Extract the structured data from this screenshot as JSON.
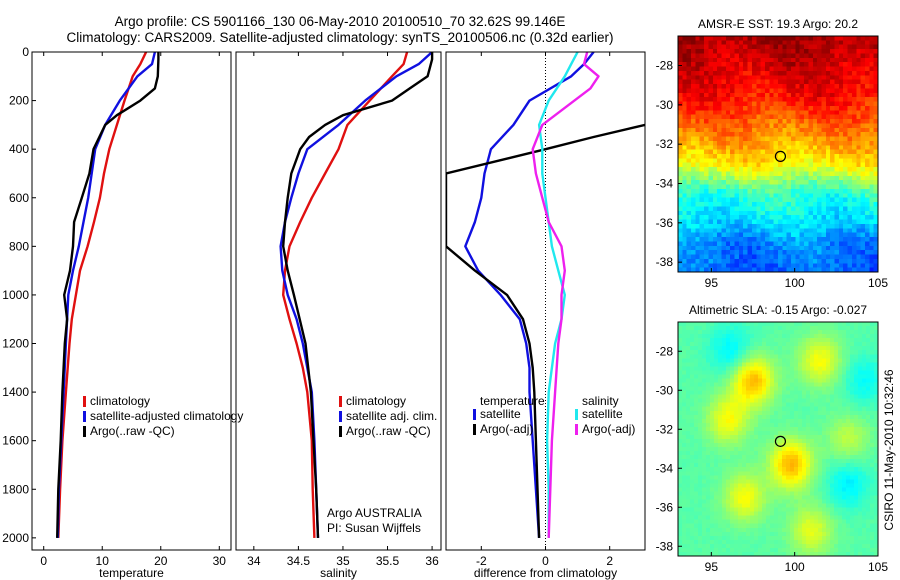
{
  "header": {
    "title_line1": "Argo profile: CS 5901166_130 06-May-2010 20100510_70 32.62S 99.146E",
    "title_line2": "Climatology: CARS2009. Satellite-adjusted climatology: synTS_20100506.nc (0.32d earlier)"
  },
  "side_label": "CSIRO 11-May-2010 10:32:46",
  "colors": {
    "red": "#e01010",
    "blue": "#1010e0",
    "black": "#000000",
    "cyan": "#20e8ee",
    "magenta": "#ee20ee"
  },
  "chart_data": [
    {
      "id": "temperature",
      "type": "line",
      "xlabel": "temperature",
      "xlim": [
        -2,
        32
      ],
      "ylim": [
        0,
        2050
      ],
      "y_reversed": true,
      "xticks": [
        0,
        10,
        20,
        30
      ],
      "yticks": [
        0,
        200,
        400,
        600,
        800,
        1000,
        1200,
        1400,
        1600,
        1800,
        2000
      ],
      "legend": {
        "placement": "bottom-right",
        "entries": [
          "climatology",
          "satellite-adjusted climatology",
          "Argo(..raw -QC)"
        ]
      },
      "series": [
        {
          "color": "red",
          "depth": [
            0,
            50,
            100,
            200,
            300,
            400,
            500,
            600,
            700,
            800,
            900,
            1000,
            1100,
            1200,
            1400,
            1600,
            1800,
            2000
          ],
          "values": [
            17.5,
            16.5,
            15.2,
            13.8,
            12.5,
            11.2,
            10.3,
            9.6,
            8.6,
            7.5,
            6.2,
            5.5,
            4.8,
            4.4,
            3.8,
            3.2,
            2.8,
            2.5
          ]
        },
        {
          "color": "blue",
          "depth": [
            0,
            50,
            100,
            200,
            300,
            400,
            500,
            600,
            700,
            800,
            900,
            1000,
            1100,
            1200,
            1400,
            1600,
            1800,
            2000
          ],
          "values": [
            19.0,
            18.5,
            16.0,
            13.0,
            10.5,
            8.8,
            8.2,
            7.6,
            6.8,
            6.0,
            5.0,
            4.2,
            4.0,
            3.8,
            3.4,
            3.0,
            2.6,
            2.4
          ]
        },
        {
          "color": "black",
          "depth": [
            0,
            30,
            100,
            150,
            200,
            260,
            300,
            400,
            500,
            600,
            700,
            800,
            900,
            1000,
            1100,
            1200,
            1400,
            1600,
            1800,
            2000
          ],
          "values": [
            19.6,
            19.6,
            19.5,
            19.0,
            16.5,
            12.5,
            10.5,
            8.5,
            7.8,
            6.5,
            5.2,
            5.0,
            4.5,
            3.5,
            4.0,
            3.6,
            3.2,
            2.9,
            2.5,
            2.3
          ]
        }
      ]
    },
    {
      "id": "salinity",
      "type": "line",
      "xlabel": "salinity",
      "xlim": [
        33.8,
        36.1
      ],
      "ylim": [
        0,
        2050
      ],
      "y_reversed": true,
      "xticks": [
        34,
        34.5,
        35,
        35.5,
        36
      ],
      "xticklabels": [
        "34",
        "34.5",
        "35",
        "35.5",
        "36"
      ],
      "legend": {
        "placement": "bottom-right",
        "entries": [
          "climatology",
          "satellite adj. clim.",
          "Argo(..raw -QC)"
        ]
      },
      "annotation": [
        "Argo AUSTRALIA",
        "PI: Susan Wijffels"
      ],
      "series": [
        {
          "color": "red",
          "depth": [
            0,
            50,
            100,
            200,
            300,
            400,
            500,
            600,
            700,
            800,
            900,
            1000,
            1100,
            1200,
            1300,
            1400,
            1600,
            1800,
            2000
          ],
          "values": [
            35.72,
            35.68,
            35.55,
            35.3,
            35.05,
            34.95,
            34.8,
            34.65,
            34.52,
            34.4,
            34.35,
            34.33,
            34.4,
            34.48,
            34.55,
            34.6,
            34.65,
            34.66,
            34.68
          ]
        },
        {
          "color": "blue",
          "depth": [
            0,
            50,
            100,
            200,
            300,
            400,
            500,
            600,
            700,
            800,
            900,
            1000,
            1100,
            1200,
            1300,
            1400,
            1600,
            1800,
            2000
          ],
          "values": [
            36.0,
            35.85,
            35.6,
            35.25,
            34.95,
            34.6,
            34.5,
            34.42,
            34.35,
            34.3,
            34.32,
            34.38,
            34.48,
            34.55,
            34.6,
            34.65,
            34.68,
            34.7,
            34.72
          ]
        },
        {
          "color": "black",
          "depth": [
            0,
            30,
            100,
            150,
            200,
            260,
            300,
            350,
            400,
            500,
            600,
            700,
            800,
            900,
            1000,
            1200,
            1400,
            1600,
            1800,
            2000
          ],
          "values": [
            36.0,
            36.0,
            35.95,
            35.75,
            35.55,
            35.0,
            34.8,
            34.62,
            34.52,
            34.42,
            34.38,
            34.35,
            34.33,
            34.38,
            34.45,
            34.58,
            34.64,
            34.67,
            34.7,
            34.72
          ]
        }
      ]
    },
    {
      "id": "difference",
      "type": "line",
      "xlabel": "difference from climatology",
      "xlim": [
        -3.1,
        3.1
      ],
      "ylim": [
        0,
        2050
      ],
      "y_reversed": true,
      "xticks": [
        -2,
        0,
        2
      ],
      "zero_line": true,
      "legend": {
        "placement": "bottom",
        "temperature_title": "temperature",
        "salinity_title": "salinity",
        "temperature_entries": [
          "satellite",
          "Argo(-adj)"
        ],
        "salinity_entries": [
          "satellite",
          "Argo(-adj)"
        ]
      },
      "series": [
        {
          "color": "blue",
          "depth": [
            0,
            50,
            100,
            200,
            300,
            400,
            500,
            600,
            700,
            800,
            900,
            1000,
            1100,
            1200,
            1300,
            1400,
            1600,
            1800,
            2000
          ],
          "values": [
            1.5,
            1.2,
            0.8,
            -0.5,
            -1.0,
            -1.7,
            -1.9,
            -2.0,
            -2.2,
            -2.5,
            -2.1,
            -1.4,
            -0.8,
            -0.6,
            -0.5,
            -0.5,
            -0.4,
            -0.3,
            -0.2
          ]
        },
        {
          "color": "black",
          "depth": [
            300,
            350,
            400,
            500,
            800,
            900,
            1000,
            1100,
            1200,
            1300,
            1400,
            1600,
            1800,
            2000
          ],
          "values": [
            3.1,
            1.5,
            0.0,
            -3.1,
            -3.1,
            -2.2,
            -1.2,
            -0.7,
            -0.5,
            -0.4,
            -0.35,
            -0.3,
            -0.25,
            -0.2
          ]
        },
        {
          "color": "cyan",
          "depth": [
            0,
            50,
            100,
            200,
            300,
            400,
            500,
            600,
            700,
            800,
            900,
            1000,
            1100,
            1200,
            1300,
            1400,
            1600,
            1800,
            2000
          ],
          "values": [
            1.0,
            0.8,
            0.6,
            0.1,
            -0.2,
            -0.1,
            -0.1,
            0.0,
            0.1,
            0.2,
            0.4,
            0.6,
            0.5,
            0.3,
            0.2,
            0.1,
            0.05,
            0.1,
            0.1
          ]
        },
        {
          "color": "magenta",
          "depth": [
            0,
            50,
            100,
            150,
            200,
            300,
            400,
            500,
            600,
            700,
            800,
            900,
            1000,
            1100,
            1200,
            1400,
            1600,
            1800,
            2000
          ],
          "values": [
            1.3,
            1.2,
            1.65,
            1.4,
            0.9,
            -0.1,
            -0.4,
            -0.3,
            -0.1,
            0.1,
            0.5,
            0.6,
            0.5,
            0.5,
            0.4,
            0.3,
            0.2,
            0.15,
            0.1
          ]
        }
      ]
    },
    {
      "id": "sst_map",
      "type": "heatmap",
      "title": "AMSR-E SST: 19.3 Argo: 20.2",
      "xlim": [
        93,
        105
      ],
      "ylim": [
        -38.5,
        -26.5
      ],
      "xticks": [
        95,
        100,
        105
      ],
      "yticks": [
        -28,
        -30,
        -32,
        -34,
        -36,
        -38
      ],
      "yticklabels": [
        "-28",
        "-30",
        "-32",
        "-34",
        "-36",
        "-38"
      ],
      "marker": [
        99.146,
        -32.62
      ],
      "colormap": "jet",
      "value_bands": [
        {
          "lat": -26.5,
          "value": 0.97
        },
        {
          "lat": -29.5,
          "value": 0.87
        },
        {
          "lat": -31.5,
          "value": 0.74
        },
        {
          "lat": -33.0,
          "value": 0.64
        },
        {
          "lat": -34.5,
          "value": 0.42
        },
        {
          "lat": -36.0,
          "value": 0.34
        },
        {
          "lat": -37.0,
          "value": 0.26
        },
        {
          "lat": -38.5,
          "value": 0.22
        }
      ]
    },
    {
      "id": "sla_map",
      "type": "heatmap",
      "title": "Altimetric SLA: -0.15 Argo: -0.027",
      "xlim": [
        93,
        105
      ],
      "ylim": [
        -38.5,
        -26.5
      ],
      "xticks": [
        95,
        100,
        105
      ],
      "yticks": [
        -28,
        -30,
        -32,
        -34,
        -36,
        -38
      ],
      "yticklabels": [
        "-28",
        "-30",
        "-32",
        "-34",
        "-36",
        "-38"
      ],
      "marker": [
        99.146,
        -32.62
      ],
      "colormap": "jet",
      "base_value": 0.46,
      "blobs": [
        {
          "lon": 97.5,
          "lat": -29.5,
          "value": 0.7
        },
        {
          "lon": 96.0,
          "lat": -31.5,
          "value": 0.62
        },
        {
          "lon": 99.8,
          "lat": -33.8,
          "value": 0.7
        },
        {
          "lon": 97.0,
          "lat": -35.5,
          "value": 0.62
        },
        {
          "lon": 101.5,
          "lat": -28.5,
          "value": 0.62
        },
        {
          "lon": 103.2,
          "lat": -32.5,
          "value": 0.56
        },
        {
          "lon": 101.0,
          "lat": -37.2,
          "value": 0.6
        },
        {
          "lon": 96.2,
          "lat": -28.0,
          "value": 0.36
        },
        {
          "lon": 103.2,
          "lat": -34.8,
          "value": 0.36
        },
        {
          "lon": 104.2,
          "lat": -29.5,
          "value": 0.38
        }
      ]
    }
  ]
}
